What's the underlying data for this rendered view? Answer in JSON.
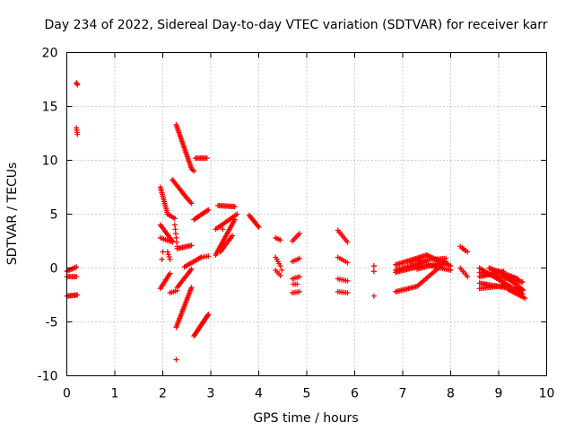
{
  "chart_data": {
    "type": "scatter",
    "title": "Day 234 of 2022, Sidereal Day-to-day VTEC variation (SDTVAR) for receiver karr",
    "xlabel": "GPS time / hours",
    "ylabel": "SDTVAR / TECUs",
    "xlim": [
      0,
      10
    ],
    "ylim": [
      -10,
      20
    ],
    "xticks": [
      0,
      1,
      2,
      3,
      4,
      5,
      6,
      7,
      8,
      9,
      10
    ],
    "yticks": [
      -10,
      -5,
      0,
      5,
      10,
      15,
      20
    ],
    "grid": true,
    "marker": "+",
    "color": "#ff0000",
    "series": [
      {
        "name": "SDTVAR",
        "segments": [
          {
            "from": [
              0.2,
              17.2
            ],
            "to": [
              0.22,
              17.0
            ],
            "n": 3
          },
          {
            "from": [
              0.2,
              13.0
            ],
            "to": [
              0.22,
              12.4
            ],
            "n": 4
          },
          {
            "from": [
              0.0,
              -0.3
            ],
            "to": [
              0.2,
              0.1
            ],
            "n": 8
          },
          {
            "from": [
              0.0,
              -0.8
            ],
            "to": [
              0.2,
              -0.8
            ],
            "n": 8
          },
          {
            "from": [
              0.0,
              -2.6
            ],
            "to": [
              0.22,
              -2.5
            ],
            "n": 10
          },
          {
            "from": [
              1.95,
              7.5
            ],
            "to": [
              2.1,
              5.0
            ],
            "n": 16
          },
          {
            "from": [
              2.1,
              5.0
            ],
            "to": [
              2.25,
              4.6
            ],
            "n": 6
          },
          {
            "from": [
              1.95,
              4.0
            ],
            "to": [
              2.2,
              2.5
            ],
            "n": 14
          },
          {
            "from": [
              1.95,
              2.8
            ],
            "to": [
              2.2,
              2.4
            ],
            "n": 8
          },
          {
            "from": [
              1.95,
              -1.9
            ],
            "to": [
              2.15,
              -0.5
            ],
            "n": 12
          },
          {
            "from": [
              2.1,
              1.5
            ],
            "to": [
              2.15,
              0.8
            ],
            "n": 4
          },
          {
            "from": [
              2.15,
              -2.3
            ],
            "to": [
              2.3,
              -2.1
            ],
            "n": 5
          },
          {
            "from": [
              2.2,
              8.2
            ],
            "to": [
              2.5,
              6.5
            ],
            "n": 16
          },
          {
            "from": [
              2.5,
              6.5
            ],
            "to": [
              2.6,
              6.0
            ],
            "n": 5
          },
          {
            "from": [
              2.28,
              13.3
            ],
            "to": [
              2.6,
              9.2
            ],
            "n": 30
          },
          {
            "from": [
              2.6,
              9.2
            ],
            "to": [
              2.65,
              9.0
            ],
            "n": 3
          },
          {
            "from": [
              2.3,
              1.8
            ],
            "to": [
              2.6,
              2.1
            ],
            "n": 12
          },
          {
            "from": [
              2.25,
              4.0
            ],
            "to": [
              2.3,
              2.0
            ],
            "n": 6
          },
          {
            "from": [
              2.28,
              -5.5
            ],
            "to": [
              2.6,
              -1.8
            ],
            "n": 28
          },
          {
            "from": [
              2.3,
              -1.8
            ],
            "to": [
              2.6,
              -0.1
            ],
            "n": 14
          },
          {
            "from": [
              2.45,
              0.1
            ],
            "to": [
              2.8,
              1.0
            ],
            "n": 14
          },
          {
            "from": [
              2.65,
              -6.3
            ],
            "to": [
              2.95,
              -4.3
            ],
            "n": 22
          },
          {
            "from": [
              2.68,
              10.2
            ],
            "to": [
              2.92,
              10.2
            ],
            "n": 10
          },
          {
            "from": [
              2.65,
              4.5
            ],
            "to": [
              2.95,
              5.4
            ],
            "n": 14
          },
          {
            "from": [
              2.8,
              1.0
            ],
            "to": [
              2.95,
              1.1
            ],
            "n": 5
          },
          {
            "from": [
              3.15,
              5.8
            ],
            "to": [
              3.5,
              5.7
            ],
            "n": 14
          },
          {
            "from": [
              3.1,
              3.6
            ],
            "to": [
              3.55,
              5.0
            ],
            "n": 16
          },
          {
            "from": [
              3.1,
              1.2
            ],
            "to": [
              3.5,
              4.5
            ],
            "n": 26
          },
          {
            "from": [
              3.2,
              1.5
            ],
            "to": [
              3.45,
              3.0
            ],
            "n": 12
          },
          {
            "from": [
              3.8,
              4.9
            ],
            "to": [
              4.0,
              3.8
            ],
            "n": 12
          },
          {
            "from": [
              4.35,
              2.8
            ],
            "to": [
              4.45,
              2.6
            ],
            "n": 4
          },
          {
            "from": [
              4.35,
              1.0
            ],
            "to": [
              4.45,
              0.2
            ],
            "n": 5
          },
          {
            "from": [
              4.35,
              -0.2
            ],
            "to": [
              4.45,
              -0.7
            ],
            "n": 4
          },
          {
            "from": [
              4.7,
              2.5
            ],
            "to": [
              4.85,
              3.2
            ],
            "n": 6
          },
          {
            "from": [
              4.7,
              0.6
            ],
            "to": [
              4.85,
              0.9
            ],
            "n": 5
          },
          {
            "from": [
              4.7,
              -1.0
            ],
            "to": [
              4.85,
              -0.8
            ],
            "n": 5
          },
          {
            "from": [
              4.7,
              -2.3
            ],
            "to": [
              4.85,
              -2.2
            ],
            "n": 5
          },
          {
            "from": [
              4.72,
              -1.5
            ],
            "to": [
              4.8,
              -1.5
            ],
            "n": 3
          },
          {
            "from": [
              5.65,
              3.5
            ],
            "to": [
              5.85,
              2.4
            ],
            "n": 8
          },
          {
            "from": [
              5.65,
              1.0
            ],
            "to": [
              5.85,
              0.5
            ],
            "n": 6
          },
          {
            "from": [
              5.65,
              -1.0
            ],
            "to": [
              5.85,
              -1.2
            ],
            "n": 6
          },
          {
            "from": [
              5.65,
              -2.2
            ],
            "to": [
              5.85,
              -2.3
            ],
            "n": 6
          },
          {
            "from": [
              6.4,
              0.2
            ],
            "to": [
              6.4,
              -0.3
            ],
            "n": 2
          },
          {
            "from": [
              6.4,
              -2.6
            ],
            "to": [
              6.4,
              -2.6
            ],
            "n": 1
          },
          {
            "from": [
              6.85,
              0.3
            ],
            "to": [
              7.5,
              1.2
            ],
            "n": 24
          },
          {
            "from": [
              6.85,
              -0.2
            ],
            "to": [
              7.5,
              0.6
            ],
            "n": 24
          },
          {
            "from": [
              6.85,
              -0.4
            ],
            "to": [
              7.4,
              0.2
            ],
            "n": 20
          },
          {
            "from": [
              7.1,
              0.6
            ],
            "to": [
              7.9,
              0.9
            ],
            "n": 24
          },
          {
            "from": [
              7.3,
              -0.1
            ],
            "to": [
              7.9,
              0.6
            ],
            "n": 20
          },
          {
            "from": [
              7.5,
              1.2
            ],
            "to": [
              8.0,
              0.2
            ],
            "n": 18
          },
          {
            "from": [
              7.5,
              0.3
            ],
            "to": [
              8.0,
              -0.2
            ],
            "n": 16
          },
          {
            "from": [
              6.85,
              -2.2
            ],
            "to": [
              7.3,
              -1.7
            ],
            "n": 16
          },
          {
            "from": [
              7.3,
              -1.7
            ],
            "to": [
              7.9,
              0.6
            ],
            "n": 22
          },
          {
            "from": [
              8.2,
              2.0
            ],
            "to": [
              8.35,
              1.5
            ],
            "n": 5
          },
          {
            "from": [
              8.2,
              0.0
            ],
            "to": [
              8.35,
              -0.8
            ],
            "n": 6
          },
          {
            "from": [
              8.6,
              0.0
            ],
            "to": [
              9.5,
              -2.4
            ],
            "n": 34
          },
          {
            "from": [
              8.6,
              -0.4
            ],
            "to": [
              9.5,
              -1.3
            ],
            "n": 34
          },
          {
            "from": [
              8.6,
              -0.8
            ],
            "to": [
              9.1,
              -0.3
            ],
            "n": 20
          },
          {
            "from": [
              9.0,
              -0.3
            ],
            "to": [
              9.5,
              -2.0
            ],
            "n": 22
          },
          {
            "from": [
              8.6,
              -1.4
            ],
            "to": [
              9.5,
              -2.1
            ],
            "n": 32
          },
          {
            "from": [
              8.6,
              -1.9
            ],
            "to": [
              9.2,
              -1.6
            ],
            "n": 20
          },
          {
            "from": [
              8.8,
              0.0
            ],
            "to": [
              9.4,
              -1.0
            ],
            "n": 24
          },
          {
            "from": [
              9.2,
              -2.0
            ],
            "to": [
              9.55,
              -2.8
            ],
            "n": 12
          }
        ],
        "points": [
          [
            2.28,
            -8.5
          ],
          [
            1.98,
            0.8
          ],
          [
            2.0,
            1.5
          ],
          [
            3.2,
            3.9
          ],
          [
            3.25,
            3.6
          ],
          [
            4.48,
            -0.2
          ],
          [
            6.4,
            -0.3
          ],
          [
            6.4,
            0.2
          ],
          [
            8.25,
            1.8
          ],
          [
            8.3,
            1.6
          ]
        ]
      }
    ]
  }
}
